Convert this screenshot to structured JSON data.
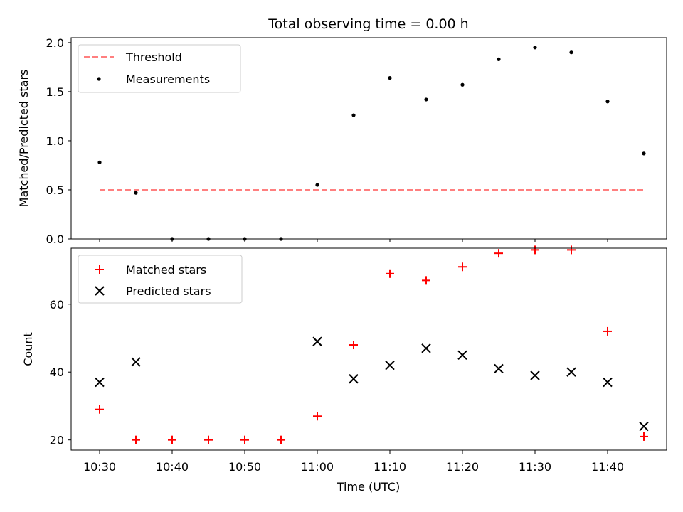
{
  "chart_data": [
    {
      "type": "scatter",
      "title": "Total observing time = 0.00 h",
      "ylabel": "Matched/Predicted stars",
      "xlabel": "",
      "ylim": [
        0,
        2.05
      ],
      "yticks": [
        "0.0",
        "0.5",
        "1.0",
        "1.5",
        "2.0"
      ],
      "x": [
        "10:30",
        "10:35",
        "10:40",
        "10:45",
        "10:50",
        "10:55",
        "11:00",
        "11:05",
        "11:10",
        "11:15",
        "11:20",
        "11:25",
        "11:30",
        "11:35",
        "11:40",
        "11:45"
      ],
      "threshold": {
        "name": "Threshold",
        "value": 0.5,
        "color": "#ff7f7f"
      },
      "series": [
        {
          "name": "Measurements",
          "color": "#000000",
          "values": [
            0.78,
            0.47,
            0.0,
            0.0,
            0.0,
            0.0,
            0.55,
            1.26,
            1.64,
            1.42,
            1.57,
            1.83,
            1.95,
            1.9,
            1.4,
            0.87
          ]
        }
      ],
      "legend": "top-left"
    },
    {
      "type": "scatter",
      "ylabel": "Count",
      "xlabel": "Time (UTC)",
      "ylim": [
        17,
        76.5
      ],
      "yticks": [
        "20",
        "40",
        "60"
      ],
      "xticks": [
        "10:30",
        "10:40",
        "10:50",
        "11:00",
        "11:10",
        "11:20",
        "11:30",
        "11:40"
      ],
      "x": [
        "10:30",
        "10:35",
        "10:40",
        "10:45",
        "10:50",
        "10:55",
        "11:00",
        "11:05",
        "11:10",
        "11:15",
        "11:20",
        "11:25",
        "11:30",
        "11:35",
        "11:40",
        "11:45"
      ],
      "series": [
        {
          "name": "Matched stars",
          "marker": "plus",
          "color": "#ff0000",
          "values": [
            29,
            20,
            20,
            20,
            20,
            20,
            27,
            48,
            69,
            67,
            71,
            75,
            76,
            76,
            52,
            21
          ]
        },
        {
          "name": "Predicted stars",
          "marker": "x",
          "color": "#000000",
          "values": [
            37,
            43,
            null,
            null,
            null,
            null,
            49,
            38,
            42,
            47,
            45,
            41,
            39,
            40,
            37,
            24
          ]
        }
      ],
      "legend": "top-left"
    }
  ]
}
